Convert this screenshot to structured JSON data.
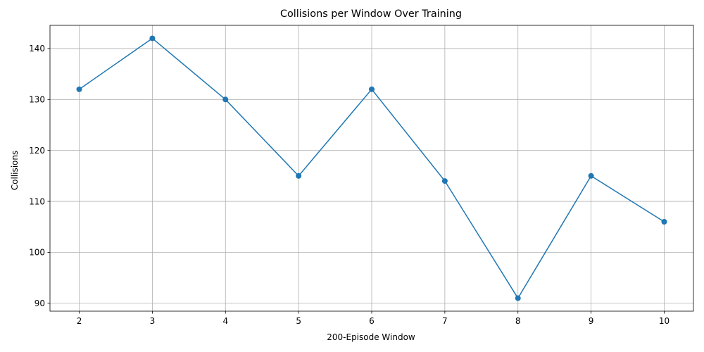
{
  "chart_data": {
    "type": "line",
    "title": "Collisions per Window Over Training",
    "xlabel": "200-Episode Window",
    "ylabel": "Collisions",
    "x": [
      2,
      3,
      4,
      5,
      6,
      7,
      8,
      9,
      10
    ],
    "series": [
      {
        "values": [
          132,
          142,
          130,
          115,
          132,
          114,
          91,
          115,
          106
        ],
        "color": "#1f77b4",
        "marker": "circle"
      }
    ],
    "xticks": [
      2,
      3,
      4,
      5,
      6,
      7,
      8,
      9,
      10
    ],
    "yticks": [
      90,
      100,
      110,
      120,
      130,
      140
    ],
    "xlim": [
      1.6,
      10.4
    ],
    "ylim": [
      88.45,
      144.55
    ],
    "grid": true,
    "grid_color": "#b0b0b0",
    "legend": "none"
  }
}
